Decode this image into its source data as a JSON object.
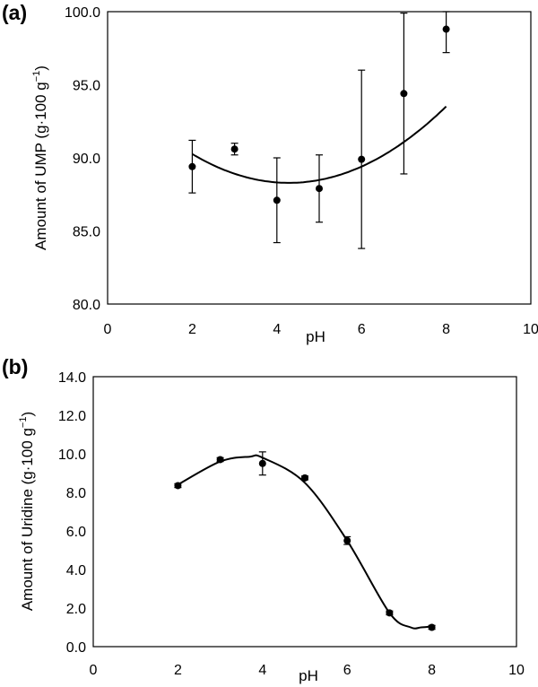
{
  "chart_data": [
    {
      "type": "scatter",
      "panel_label": "(a)",
      "xlabel": "pH",
      "ylabel": "Amount of UMP (g·100 g",
      "ylabel_sup": "−1",
      "ylabel_close": ")",
      "xlim": [
        0,
        10
      ],
      "ylim": [
        80,
        100
      ],
      "x_ticks": [
        0,
        2,
        4,
        6,
        8,
        10
      ],
      "x_tick_labels": [
        "0",
        "2",
        "4",
        "6",
        "8",
        "10"
      ],
      "y_ticks": [
        80,
        85,
        90,
        95,
        100
      ],
      "y_tick_labels": [
        "80.0",
        "85.0",
        "90.0",
        "95.0",
        "100.0"
      ],
      "grid": false,
      "series": [
        {
          "x": [
            2,
            3,
            4,
            5,
            6,
            7,
            8
          ],
          "y": [
            89.4,
            90.6,
            87.1,
            87.9,
            89.9,
            94.4,
            98.8
          ],
          "error": [
            1.8,
            0.4,
            2.9,
            2.3,
            6.1,
            5.5,
            1.6
          ]
        }
      ],
      "fit": {
        "type": "polynomial",
        "coefficients": [
          95.24,
          -3.245,
          0.3787
        ],
        "x_range": [
          2,
          8
        ]
      }
    },
    {
      "type": "scatter",
      "panel_label": "(b)",
      "xlabel": "pH",
      "ylabel": "Amount of Uridine (g·100 g",
      "ylabel_sup": "−1",
      "ylabel_close": ")",
      "xlim": [
        0,
        10
      ],
      "ylim": [
        0,
        14
      ],
      "x_ticks": [
        0,
        2,
        4,
        6,
        8,
        10
      ],
      "x_tick_labels": [
        "0",
        "2",
        "4",
        "6",
        "8",
        "10"
      ],
      "y_ticks": [
        0,
        2,
        4,
        6,
        8,
        10,
        12,
        14
      ],
      "y_tick_labels": [
        "0.0",
        "2.0",
        "4.0",
        "6.0",
        "8.0",
        "10.0",
        "12.0",
        "14.0"
      ],
      "grid": false,
      "series": [
        {
          "x": [
            2,
            3,
            4,
            5,
            6,
            7,
            8
          ],
          "y": [
            8.35,
            9.7,
            9.5,
            8.75,
            5.5,
            1.75,
            1.0
          ],
          "error": [
            0.1,
            0.1,
            0.6,
            0.1,
            0.2,
            0.1,
            0.1
          ]
        }
      ],
      "fit": {
        "type": "smooth",
        "x": [
          2,
          3,
          3.7,
          4,
          5,
          6,
          7,
          7.5,
          7.75,
          8
        ],
        "y": [
          8.4,
          9.6,
          9.85,
          9.8,
          8.5,
          5.5,
          1.75,
          1.0,
          1.0,
          1.05
        ]
      }
    }
  ]
}
